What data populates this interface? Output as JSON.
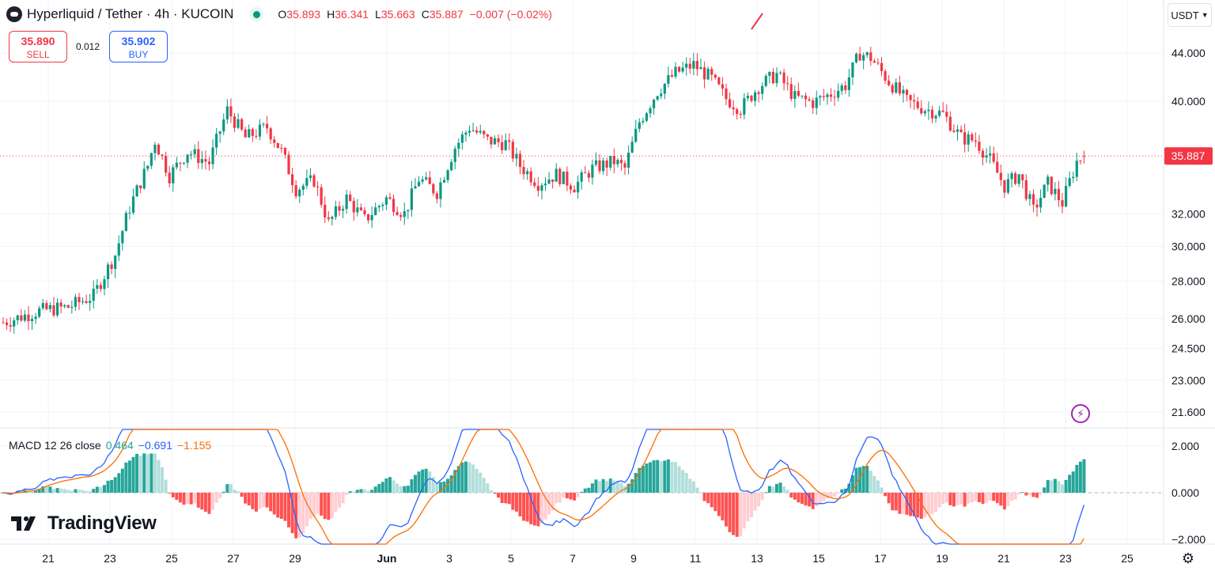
{
  "header": {
    "title": "Hyperliquid / Tether · 4h · KUCOIN",
    "ohlc": [
      {
        "k": "O",
        "v": "35.893"
      },
      {
        "k": "H",
        "v": "36.341"
      },
      {
        "k": "L",
        "v": "35.663"
      },
      {
        "k": "C",
        "v": "35.887"
      }
    ],
    "change": "−0.007 (−0.02%)"
  },
  "trade": {
    "sell_price": "35.890",
    "sell_label": "SELL",
    "spread": "0.012",
    "buy_price": "35.902",
    "buy_label": "BUY"
  },
  "currency": "USDT",
  "macd": {
    "label": "MACD 12 26 close",
    "hist": "0.464",
    "macd": "−0.691",
    "signal": "−1.155"
  },
  "brand": "TradingView",
  "colors": {
    "up": "#089981",
    "down": "#f23645",
    "macd": "#2962ff",
    "signal": "#ff6d00",
    "accent": "#9c27b0"
  },
  "icons": {
    "logo": "hyperliquid-logo-icon",
    "bolt": "lightning-bolt-icon",
    "settings": "gear-icon",
    "dropdown": "chevron-down-icon"
  },
  "chart_data": [
    {
      "type": "candlestick",
      "price_axis_ticks": [
        44.0,
        40.0,
        32.0,
        30.0,
        28.0,
        26.0,
        24.5,
        23.0,
        21.6
      ],
      "price_axis_labels": [
        "44.000",
        "40.000",
        "32.000",
        "30.000",
        "28.000",
        "26.000",
        "24.500",
        "23.000",
        "21.600"
      ],
      "scale": "log",
      "current_price": 35.887,
      "current_price_label": "35.887",
      "x_tick_labels": [
        "21",
        "23",
        "25",
        "27",
        "29",
        "Jun",
        "3",
        "5",
        "7",
        "9",
        "11",
        "13",
        "15",
        "17",
        "19",
        "21",
        "23",
        "25"
      ],
      "anchors": [
        [
          0,
          25.8
        ],
        [
          10,
          26.4
        ],
        [
          18,
          26.6
        ],
        [
          25,
          27.2
        ],
        [
          31,
          29.5
        ],
        [
          35,
          32.4
        ],
        [
          40,
          35.2
        ],
        [
          42,
          37.0
        ],
        [
          46,
          34.5
        ],
        [
          51,
          36.2
        ],
        [
          57,
          35.4
        ],
        [
          62,
          39.3
        ],
        [
          67,
          37.2
        ],
        [
          73,
          38.0
        ],
        [
          77,
          36.2
        ],
        [
          81,
          33.6
        ],
        [
          86,
          34.2
        ],
        [
          90,
          31.4
        ],
        [
          95,
          33.0
        ],
        [
          100,
          31.6
        ],
        [
          106,
          33.0
        ],
        [
          111,
          32.0
        ],
        [
          115,
          34.3
        ],
        [
          120,
          33.4
        ],
        [
          125,
          36.5
        ],
        [
          129,
          38.0
        ],
        [
          134,
          37.0
        ],
        [
          139,
          36.8
        ],
        [
          143,
          35.2
        ],
        [
          148,
          34.0
        ],
        [
          153,
          34.6
        ],
        [
          158,
          33.8
        ],
        [
          163,
          35.0
        ],
        [
          169,
          35.5
        ],
        [
          172,
          35.0
        ],
        [
          176,
          38.4
        ],
        [
          181,
          40.8
        ],
        [
          186,
          42.3
        ],
        [
          191,
          43.0
        ],
        [
          196,
          41.8
        ],
        [
          200,
          40.2
        ],
        [
          204,
          39.4
        ],
        [
          209,
          41.2
        ],
        [
          214,
          42.2
        ],
        [
          219,
          40.3
        ],
        [
          224,
          39.9
        ],
        [
          229,
          40.6
        ],
        [
          233,
          41.3
        ],
        [
          237,
          44.0
        ],
        [
          240,
          43.6
        ],
        [
          245,
          41.6
        ],
        [
          250,
          40.0
        ],
        [
          255,
          39.4
        ],
        [
          260,
          39.0
        ],
        [
          265,
          37.2
        ],
        [
          269,
          37.0
        ],
        [
          273,
          35.6
        ],
        [
          277,
          33.8
        ],
        [
          281,
          34.6
        ],
        [
          285,
          32.2
        ],
        [
          289,
          34.0
        ],
        [
          293,
          32.7
        ],
        [
          297,
          35.5
        ],
        [
          299,
          35.887
        ]
      ]
    },
    {
      "type": "macd",
      "name": "MACD 12 26 close",
      "y_axis_labels": [
        "2.000",
        "0.000",
        "−2.000"
      ],
      "y_axis_ticks": [
        2.0,
        0.0,
        -2.0
      ],
      "histogram_last": 0.464,
      "macd_last": -0.691,
      "signal_last": -1.155
    }
  ]
}
